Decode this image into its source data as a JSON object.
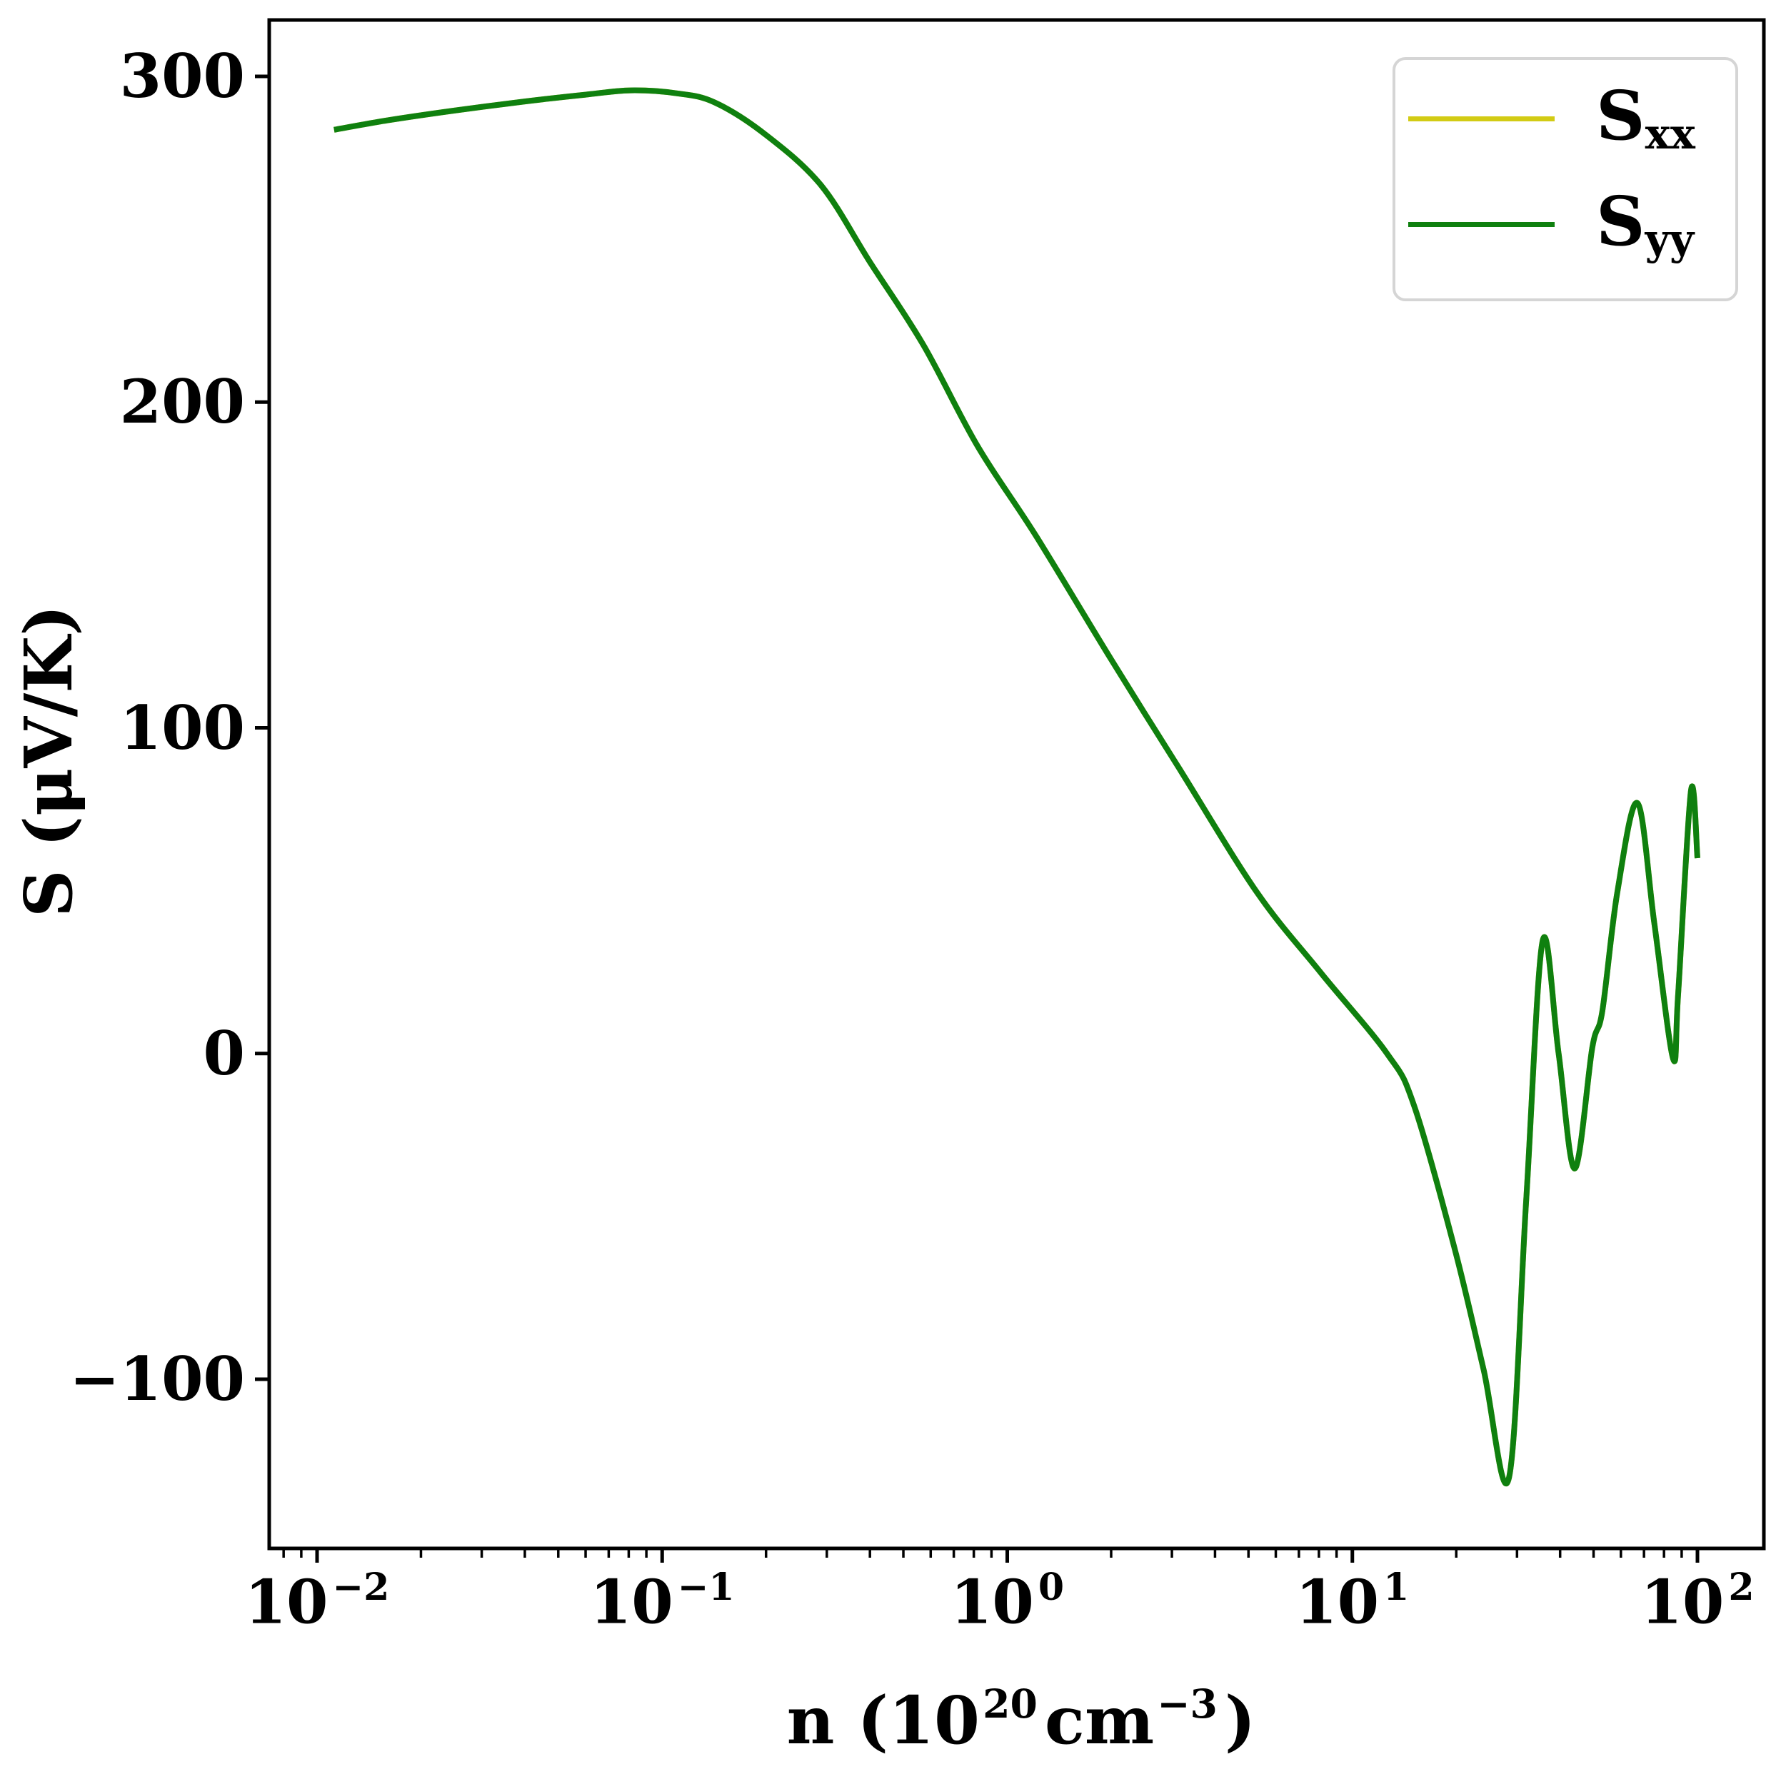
{
  "figure": {
    "background": "#ffffff",
    "spine_color": "#000000",
    "tick_color": "#000000"
  },
  "chart_data": {
    "type": "line",
    "title": "",
    "xlabel": "n (10^20 cm^-3)",
    "xlabel_parts": {
      "prefix": "n (10",
      "sup1": "20",
      "mid": "cm",
      "sup2": "−3",
      "suffix": ")"
    },
    "ylabel": "S (μV/K)",
    "x_scale": "log",
    "grid": false,
    "xlim": [
      0.0073,
      155
    ],
    "ylim": [
      -152,
      317
    ],
    "legend_position": "upper right",
    "xticks": [
      {
        "v": 0.01,
        "base": "10",
        "exp": "−2"
      },
      {
        "v": 0.1,
        "base": "10",
        "exp": "−1"
      },
      {
        "v": 1,
        "base": "10",
        "exp": "0"
      },
      {
        "v": 10,
        "base": "10",
        "exp": "1"
      },
      {
        "v": 100,
        "base": "10",
        "exp": "2"
      }
    ],
    "yticks": [
      {
        "v": 300,
        "label": "300"
      },
      {
        "v": 200,
        "label": "200"
      },
      {
        "v": 100,
        "label": "100"
      },
      {
        "v": 0,
        "label": "0"
      },
      {
        "v": -100,
        "label": "−100"
      }
    ],
    "series": [
      {
        "id": "sxx",
        "label_main": "S",
        "label_sub": "xx",
        "color": "#d2cb14"
      },
      {
        "id": "syy",
        "label_main": "S",
        "label_sub": "yy",
        "color": "#0f800f"
      }
    ],
    "series_overlap_note": "S_xx and S_yy coincide exactly; both use the shared points below (green drawn on top)",
    "points": [
      [
        0.0112,
        283.6
      ],
      [
        0.016,
        286.5
      ],
      [
        0.025,
        289.5
      ],
      [
        0.04,
        292.3
      ],
      [
        0.06,
        294.4
      ],
      [
        0.081,
        295.7
      ],
      [
        0.11,
        294.8
      ],
      [
        0.142,
        292.0
      ],
      [
        0.2,
        282.0
      ],
      [
        0.289,
        266.5
      ],
      [
        0.4,
        243.0
      ],
      [
        0.571,
        217.6
      ],
      [
        0.82,
        186.5
      ],
      [
        1.21,
        159.0
      ],
      [
        2.0,
        121.0
      ],
      [
        3.13,
        88.0
      ],
      [
        5.29,
        49.5
      ],
      [
        8.12,
        24.7
      ],
      [
        12.6,
        0.0
      ],
      [
        15.1,
        -16.0
      ],
      [
        19.8,
        -60.0
      ],
      [
        24.0,
        -97.0
      ],
      [
        28.4,
        -130.5
      ],
      [
        31.9,
        -45.0
      ],
      [
        35.6,
        34.6
      ],
      [
        39.6,
        0.0
      ],
      [
        44.1,
        -35.3
      ],
      [
        49.6,
        1.9
      ],
      [
        53.0,
        13.0
      ],
      [
        58.6,
        49.5
      ],
      [
        67.0,
        76.9
      ],
      [
        75.0,
        40.0
      ],
      [
        85.0,
        -1.6
      ],
      [
        87.9,
        18.0
      ],
      [
        95.8,
        80.8
      ],
      [
        100.0,
        60.0
      ]
    ]
  }
}
